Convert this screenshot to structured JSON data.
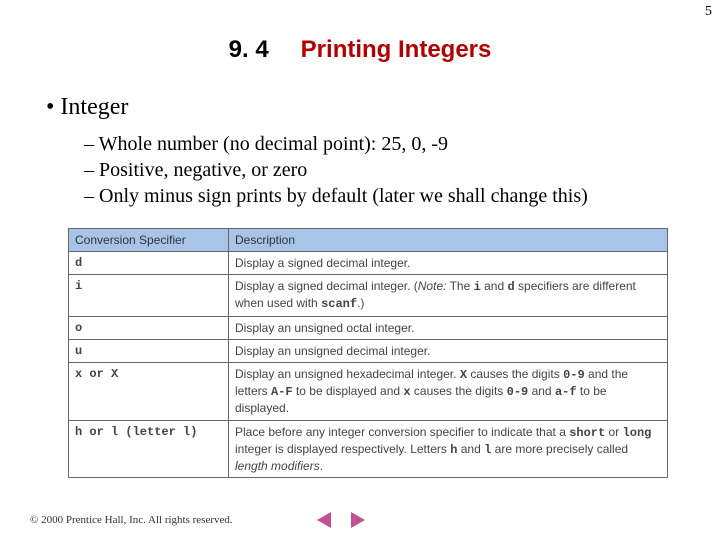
{
  "page_number": "5",
  "title": {
    "number": "9. 4",
    "text": "Printing Integers"
  },
  "main_bullet": "Integer",
  "sub_bullets": [
    "Whole number (no decimal point):  25, 0, -9",
    "Positive, negative, or zero",
    "Only minus sign prints by default (later we shall change this)"
  ],
  "table": {
    "headers": [
      "Conversion Specifier",
      "Description"
    ],
    "rows": [
      {
        "spec": "d",
        "desc": "Display a signed decimal integer."
      },
      {
        "spec": "i",
        "desc": "Display a signed decimal integer. (<span class=\"italic\">Note:</span> The <span class=\"mono\">i</span> and <span class=\"mono\">d</span> specifiers are different when used with <span class=\"mono\">scanf</span>.)"
      },
      {
        "spec": "o",
        "desc": "Display an unsigned octal integer."
      },
      {
        "spec": "u",
        "desc": "Display an unsigned decimal integer."
      },
      {
        "spec": "x or X",
        "desc": "Display an unsigned hexadecimal integer. <span class=\"mono\">X</span> causes the digits <span class=\"mono\">0-9</span> and the letters <span class=\"mono\">A-F</span> to be displayed and <span class=\"mono\">x</span> causes the digits <span class=\"mono\">0-9</span> and <span class=\"mono\">a-f</span> to be displayed."
      },
      {
        "spec": "h or l (letter l)",
        "desc": "Place before any integer conversion specifier to indicate that a <span class=\"mono\">short</span> or <span class=\"mono\">long</span> integer is displayed respectively. Letters <span class=\"mono\">h</span> and <span class=\"mono\">l</span> are more precisely called <span class=\"italic\">length modifiers</span>."
      }
    ]
  },
  "footer": "© 2000 Prentice Hall, Inc.  All rights reserved."
}
